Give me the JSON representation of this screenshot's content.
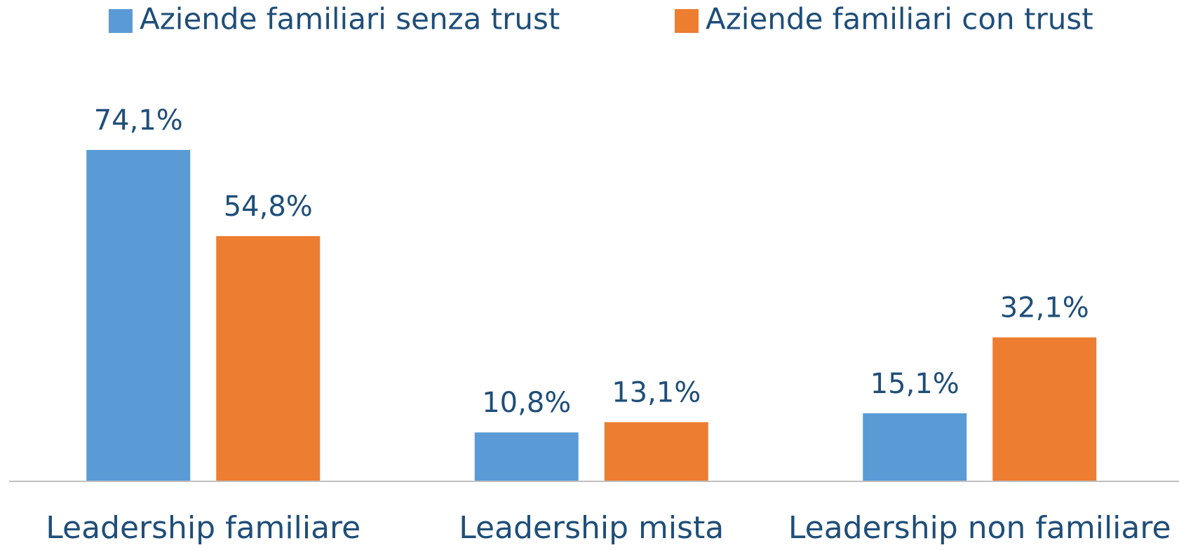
{
  "chart_data": {
    "type": "bar",
    "categories": [
      "Leadership familiare",
      "Leadership mista",
      "Leadership non familiare"
    ],
    "series": [
      {
        "name": "Aziende familiari senza trust",
        "color": "#5b9bd5",
        "values": [
          74.1,
          10.8,
          15.1
        ],
        "value_labels": [
          "74,1%",
          "10,8%",
          "15,1%"
        ]
      },
      {
        "name": "Aziende familiari con trust",
        "color": "#ed7d31",
        "values": [
          54.8,
          13.1,
          32.1
        ],
        "value_labels": [
          "54,8%",
          "13,1%",
          "32,1%"
        ]
      }
    ],
    "legend": "top"
  }
}
